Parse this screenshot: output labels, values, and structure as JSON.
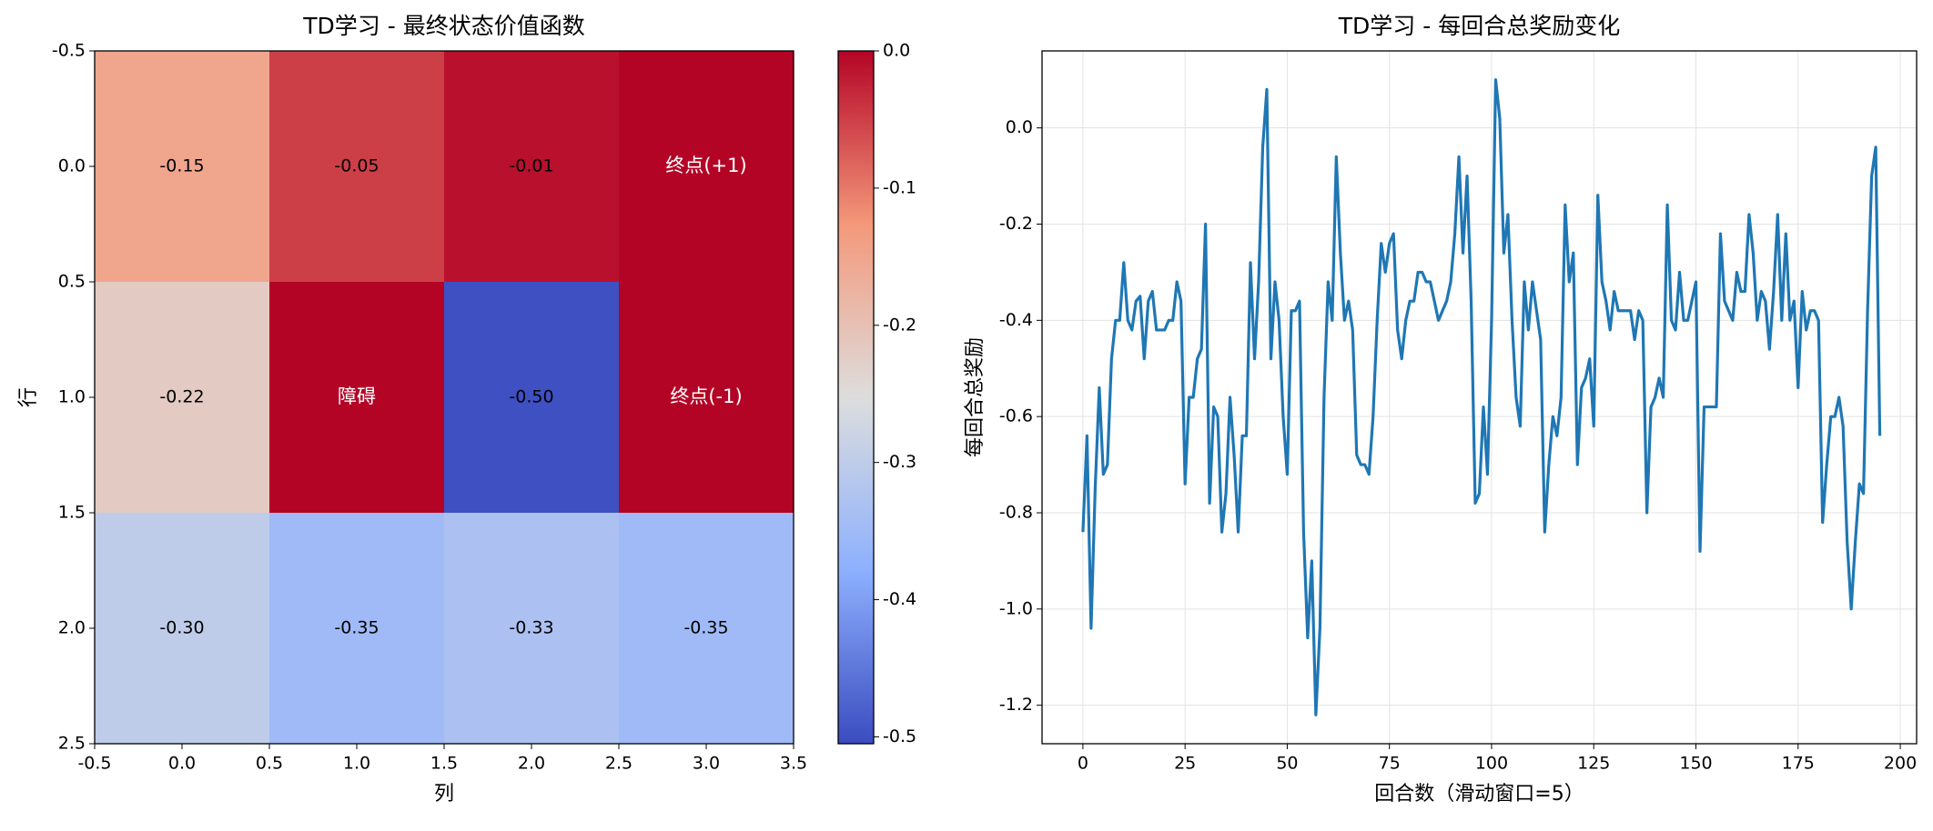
{
  "chart_data": [
    {
      "type": "heatmap",
      "title": "TD学习 - 最终状态价值函数",
      "x_label": "列",
      "y_label": "行",
      "colormap": "coolwarm",
      "values": [
        [
          -0.15,
          -0.05,
          -0.01,
          0
        ],
        [
          -0.22,
          0,
          -0.5,
          0
        ],
        [
          -0.3,
          -0.35,
          -0.33,
          -0.35
        ]
      ],
      "value_labels": [
        [
          "-0.15",
          "-0.05",
          "-0.01",
          null
        ],
        [
          "-0.22",
          null,
          "-0.50",
          null
        ],
        [
          "-0.30",
          "-0.35",
          "-0.33",
          "-0.35"
        ]
      ],
      "annotations": [
        {
          "row": 0,
          "col": 3,
          "text": "终点(+1)"
        },
        {
          "row": 1,
          "col": 1,
          "text": "障碍"
        },
        {
          "row": 1,
          "col": 3,
          "text": "终点(-1)"
        }
      ],
      "xlim": [
        -0.5,
        3.5
      ],
      "ylim": [
        2.5,
        -0.5
      ],
      "xticks": [
        -0.5,
        {
          "value": 0,
          "label": "0.0"
        },
        0.5,
        {
          "value": 1,
          "label": "1.0"
        },
        1.5,
        {
          "value": 2,
          "label": "2.0"
        },
        2.5,
        {
          "value": 3,
          "label": "3.0"
        },
        3.5
      ],
      "yticks": [
        -0.5,
        {
          "value": 0,
          "label": "0.0"
        },
        0.5,
        {
          "value": 1,
          "label": "1.0"
        },
        1.5,
        {
          "value": 2,
          "label": "2.0"
        },
        2.5
      ],
      "clim": [
        -0.505,
        0
      ],
      "cticks": [
        {
          "value": 0,
          "label": "0.0"
        },
        -0.1,
        -0.2,
        -0.3,
        -0.4,
        -0.5
      ]
    },
    {
      "type": "line",
      "title": "TD学习 - 每回合总奖励变化",
      "x_label": "回合数（滑动窗口=5）",
      "y_label": "每回合总奖励",
      "grid": true,
      "xlim": [
        -10,
        204
      ],
      "ylim": [
        -1.28,
        0.16
      ],
      "xticks": [
        0,
        25,
        50,
        75,
        100,
        125,
        150,
        175,
        200
      ],
      "yticks": [
        {
          "value": 0,
          "label": "0.0"
        },
        -0.2,
        -0.4,
        -0.6,
        -0.8,
        {
          "value": -1,
          "label": "-1.0"
        },
        -1.2
      ],
      "series": [
        {
          "color": "#1f77b4",
          "values": [
            -0.84,
            -0.64,
            -1.04,
            -0.75,
            -0.54,
            -0.72,
            -0.7,
            -0.48,
            -0.4,
            -0.4,
            -0.28,
            -0.4,
            -0.42,
            -0.36,
            -0.35,
            -0.48,
            -0.36,
            -0.34,
            -0.42,
            -0.42,
            -0.42,
            -0.4,
            -0.4,
            -0.32,
            -0.36,
            -0.74,
            -0.56,
            -0.56,
            -0.48,
            -0.46,
            -0.2,
            -0.78,
            -0.58,
            -0.6,
            -0.84,
            -0.76,
            -0.56,
            -0.68,
            -0.84,
            -0.64,
            -0.64,
            -0.28,
            -0.48,
            -0.32,
            -0.04,
            0.08,
            -0.48,
            -0.32,
            -0.4,
            -0.6,
            -0.72,
            -0.38,
            -0.38,
            -0.36,
            -0.84,
            -1.06,
            -0.9,
            -1.22,
            -1.04,
            -0.56,
            -0.32,
            -0.4,
            -0.06,
            -0.26,
            -0.4,
            -0.36,
            -0.42,
            -0.68,
            -0.7,
            -0.7,
            -0.72,
            -0.6,
            -0.4,
            -0.24,
            -0.3,
            -0.24,
            -0.22,
            -0.42,
            -0.48,
            -0.4,
            -0.36,
            -0.36,
            -0.3,
            -0.3,
            -0.32,
            -0.32,
            -0.36,
            -0.4,
            -0.38,
            -0.36,
            -0.32,
            -0.22,
            -0.06,
            -0.26,
            -0.1,
            -0.36,
            -0.78,
            -0.76,
            -0.58,
            -0.72,
            -0.4,
            0.1,
            0.02,
            -0.26,
            -0.18,
            -0.4,
            -0.56,
            -0.62,
            -0.32,
            -0.42,
            -0.32,
            -0.38,
            -0.44,
            -0.84,
            -0.7,
            -0.6,
            -0.64,
            -0.56,
            -0.16,
            -0.32,
            -0.26,
            -0.7,
            -0.54,
            -0.52,
            -0.48,
            -0.62,
            -0.14,
            -0.32,
            -0.36,
            -0.42,
            -0.34,
            -0.38,
            -0.38,
            -0.38,
            -0.38,
            -0.44,
            -0.38,
            -0.4,
            -0.8,
            -0.58,
            -0.56,
            -0.52,
            -0.56,
            -0.16,
            -0.4,
            -0.42,
            -0.3,
            -0.4,
            -0.4,
            -0.36,
            -0.32,
            -0.88,
            -0.58,
            -0.58,
            -0.58,
            -0.58,
            -0.22,
            -0.36,
            -0.38,
            -0.4,
            -0.3,
            -0.34,
            -0.34,
            -0.18,
            -0.26,
            -0.4,
            -0.34,
            -0.36,
            -0.46,
            -0.34,
            -0.18,
            -0.4,
            -0.22,
            -0.4,
            -0.36,
            -0.54,
            -0.34,
            -0.42,
            -0.38,
            -0.38,
            -0.4,
            -0.82,
            -0.7,
            -0.6,
            -0.6,
            -0.56,
            -0.62,
            -0.86,
            -1.0,
            -0.86,
            -0.74,
            -0.76,
            -0.38,
            -0.1,
            -0.04,
            -0.64
          ]
        }
      ]
    }
  ]
}
